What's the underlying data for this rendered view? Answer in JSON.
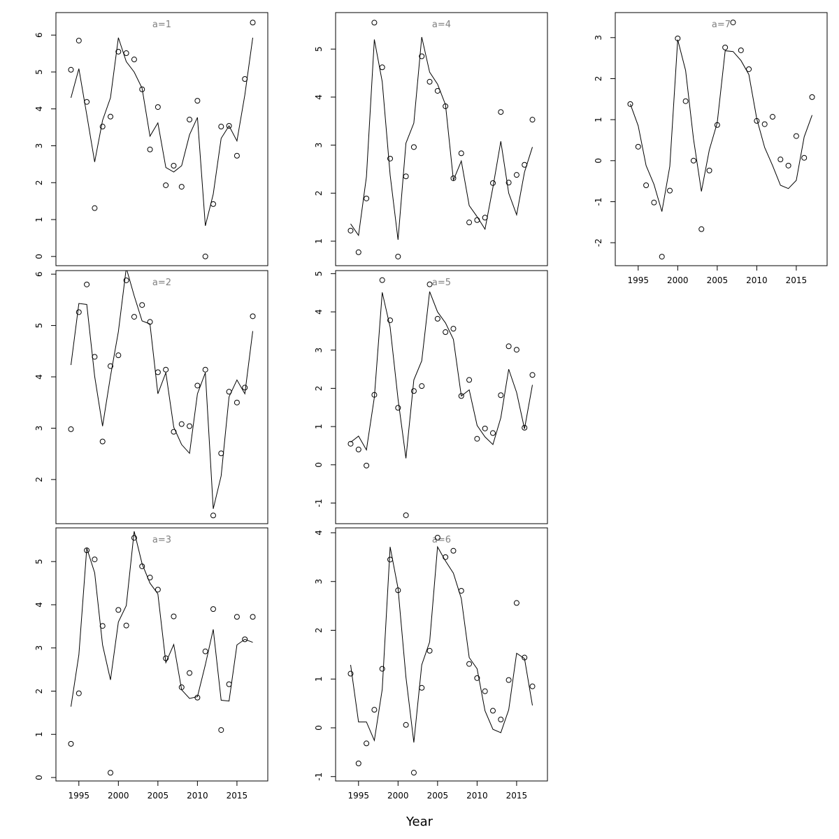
{
  "xlabel": "Year",
  "chart_data": [
    {
      "type": "scatter",
      "title": "a=1",
      "x": [
        1994,
        1995,
        1996,
        1997,
        1998,
        1999,
        2000,
        2001,
        2002,
        2003,
        2004,
        2005,
        2006,
        2007,
        2008,
        2009,
        2010,
        2011,
        2012,
        2013,
        2014,
        2015,
        2016,
        2017
      ],
      "xlim": [
        1992.1,
        2018.9
      ],
      "ylim": [
        -0.25,
        6.61
      ],
      "yticks": [
        0,
        1,
        2,
        3,
        4,
        5,
        6
      ],
      "series": [
        {
          "mark": "points",
          "color": "#000000",
          "values": [
            5.06,
            5.85,
            4.19,
            1.31,
            3.52,
            3.79,
            5.55,
            5.51,
            5.34,
            4.53,
            2.9,
            4.05,
            1.93,
            2.46,
            1.89,
            3.71,
            4.22,
            0.0,
            1.42,
            3.52,
            3.54,
            2.73,
            4.81,
            6.34
          ]
        },
        {
          "mark": "line",
          "color": "#000000",
          "values": [
            4.3,
            5.09,
            3.84,
            2.56,
            3.69,
            4.3,
            5.93,
            5.28,
            5.0,
            4.56,
            3.26,
            3.62,
            2.41,
            2.29,
            2.46,
            3.3,
            3.77,
            0.83,
            1.69,
            3.2,
            3.54,
            3.13,
            4.38,
            5.93
          ]
        }
      ]
    },
    {
      "type": "scatter",
      "title": "a=2",
      "x": [
        1994,
        1995,
        1996,
        1997,
        1998,
        1999,
        2000,
        2001,
        2002,
        2003,
        2004,
        2005,
        2006,
        2007,
        2008,
        2009,
        2010,
        2011,
        2012,
        2013,
        2014,
        2015,
        2016,
        2017
      ],
      "xlim": [
        1992.1,
        2018.9
      ],
      "ylim": [
        1.14,
        6.07
      ],
      "yticks": [
        2,
        3,
        4,
        5,
        6
      ],
      "series": [
        {
          "mark": "points",
          "color": "#000000",
          "values": [
            2.98,
            5.26,
            5.8,
            4.39,
            2.74,
            4.21,
            4.42,
            5.88,
            5.17,
            5.4,
            5.07,
            4.09,
            4.14,
            2.93,
            3.08,
            3.04,
            3.83,
            4.14,
            1.3,
            2.51,
            3.71,
            3.5,
            3.79,
            5.18
          ]
        },
        {
          "mark": "line",
          "color": "#000000",
          "values": [
            4.23,
            5.43,
            5.41,
            4.01,
            3.04,
            4.01,
            4.88,
            6.12,
            5.58,
            5.09,
            5.03,
            3.67,
            4.08,
            3.02,
            2.68,
            2.51,
            3.67,
            4.08,
            1.43,
            2.07,
            3.61,
            3.94,
            3.67,
            4.89
          ]
        }
      ]
    },
    {
      "type": "scatter",
      "title": "a=3",
      "x": [
        1994,
        1995,
        1996,
        1997,
        1998,
        1999,
        2000,
        2001,
        2002,
        2003,
        2004,
        2005,
        2006,
        2007,
        2008,
        2009,
        2010,
        2011,
        2012,
        2013,
        2014,
        2015,
        2016,
        2017
      ],
      "xlim": [
        1992.1,
        2018.9
      ],
      "xticks": [
        1995,
        2000,
        2005,
        2010,
        2015
      ],
      "ylim": [
        -0.08,
        5.78
      ],
      "yticks": [
        0,
        1,
        2,
        3,
        4,
        5
      ],
      "series": [
        {
          "mark": "points",
          "color": "#000000",
          "values": [
            0.78,
            1.95,
            5.26,
            5.05,
            3.51,
            0.11,
            3.88,
            3.52,
            5.55,
            4.89,
            4.63,
            4.35,
            2.76,
            3.73,
            2.09,
            2.42,
            1.85,
            2.92,
            3.9,
            1.1,
            2.16,
            3.72,
            3.2,
            3.72
          ]
        },
        {
          "mark": "line",
          "color": "#000000",
          "values": [
            1.64,
            2.84,
            5.31,
            4.74,
            3.07,
            2.26,
            3.6,
            3.98,
            5.7,
            4.95,
            4.5,
            4.25,
            2.66,
            3.08,
            2.03,
            1.83,
            1.87,
            2.61,
            3.43,
            1.79,
            1.77,
            3.07,
            3.2,
            3.13
          ]
        }
      ]
    },
    {
      "type": "scatter",
      "title": "a=4",
      "x": [
        1994,
        1995,
        1996,
        1997,
        1998,
        1999,
        2000,
        2001,
        2002,
        2003,
        2004,
        2005,
        2006,
        2007,
        2008,
        2009,
        2010,
        2011,
        2012,
        2013,
        2014,
        2015,
        2016,
        2017
      ],
      "xlim": [
        1992.1,
        2018.9
      ],
      "ylim": [
        0.49,
        5.76
      ],
      "yticks": [
        1,
        2,
        3,
        4,
        5
      ],
      "series": [
        {
          "mark": "points",
          "color": "#000000",
          "values": [
            1.22,
            0.77,
            1.89,
            5.55,
            4.62,
            2.72,
            0.68,
            2.35,
            2.96,
            4.85,
            4.32,
            4.13,
            3.81,
            2.31,
            2.83,
            1.39,
            1.44,
            1.49,
            2.21,
            3.69,
            2.22,
            2.38,
            2.59,
            3.53
          ]
        },
        {
          "mark": "line",
          "color": "#000000",
          "values": [
            1.36,
            1.12,
            2.34,
            5.2,
            4.32,
            2.38,
            1.03,
            3.04,
            3.46,
            5.25,
            4.52,
            4.27,
            3.84,
            2.27,
            2.67,
            1.74,
            1.51,
            1.25,
            2.12,
            3.08,
            2.0,
            1.55,
            2.44,
            2.96
          ]
        }
      ]
    },
    {
      "type": "scatter",
      "title": "a=5",
      "x": [
        1994,
        1995,
        1996,
        1997,
        1998,
        1999,
        2000,
        2001,
        2002,
        2003,
        2004,
        2005,
        2006,
        2007,
        2008,
        2009,
        2010,
        2011,
        2012,
        2013,
        2014,
        2015,
        2016,
        2017
      ],
      "xlim": [
        1992.1,
        2018.9
      ],
      "ylim": [
        -1.54,
        5.08
      ],
      "yticks": [
        -1,
        0,
        1,
        2,
        3,
        4,
        5
      ],
      "series": [
        {
          "mark": "points",
          "color": "#000000",
          "values": [
            0.55,
            0.4,
            -0.02,
            1.83,
            4.83,
            3.78,
            1.49,
            -1.32,
            1.93,
            2.06,
            4.72,
            3.82,
            3.47,
            3.56,
            1.8,
            2.22,
            0.68,
            0.95,
            0.83,
            1.82,
            3.1,
            3.01,
            0.97,
            2.35
          ]
        },
        {
          "mark": "line",
          "color": "#000000",
          "values": [
            0.59,
            0.75,
            0.39,
            1.76,
            4.51,
            3.6,
            1.72,
            0.17,
            2.22,
            2.72,
            4.53,
            4.0,
            3.71,
            3.28,
            1.8,
            1.96,
            1.03,
            0.73,
            0.53,
            1.23,
            2.5,
            1.89,
            0.94,
            2.09
          ]
        }
      ]
    },
    {
      "type": "scatter",
      "title": "a=6",
      "x": [
        1994,
        1995,
        1996,
        1997,
        1998,
        1999,
        2000,
        2001,
        2002,
        2003,
        2004,
        2005,
        2006,
        2007,
        2008,
        2009,
        2010,
        2011,
        2012,
        2013,
        2014,
        2015,
        2016,
        2017
      ],
      "xlim": [
        1992.1,
        2018.9
      ],
      "xticks": [
        1995,
        2000,
        2005,
        2010,
        2015
      ],
      "ylim": [
        -1.09,
        4.1
      ],
      "yticks": [
        -1,
        0,
        1,
        2,
        3,
        4
      ],
      "series": [
        {
          "mark": "points",
          "color": "#000000",
          "values": [
            1.11,
            -0.73,
            -0.32,
            0.37,
            1.21,
            3.45,
            2.82,
            0.06,
            -0.92,
            0.82,
            1.58,
            3.9,
            3.5,
            3.63,
            2.81,
            1.31,
            1.02,
            0.75,
            0.35,
            0.17,
            0.98,
            2.56,
            1.44,
            0.85
          ]
        },
        {
          "mark": "line",
          "color": "#000000",
          "values": [
            1.29,
            0.12,
            0.12,
            -0.26,
            0.79,
            3.71,
            2.86,
            1.04,
            -0.3,
            1.29,
            1.76,
            3.71,
            3.42,
            3.17,
            2.65,
            1.44,
            1.21,
            0.35,
            -0.03,
            -0.1,
            0.37,
            1.53,
            1.42,
            0.46
          ]
        }
      ]
    },
    {
      "type": "scatter",
      "title": "a=7",
      "x": [
        1994,
        1995,
        1996,
        1997,
        1998,
        1999,
        2000,
        2001,
        2002,
        2003,
        2004,
        2005,
        2006,
        2007,
        2008,
        2009,
        2010,
        2011,
        2012,
        2013,
        2014,
        2015,
        2016,
        2017
      ],
      "xlim": [
        1992.1,
        2018.9
      ],
      "xticks": [
        1995,
        2000,
        2005,
        2010,
        2015
      ],
      "ylim": [
        -2.56,
        3.61
      ],
      "yticks": [
        -2,
        -1,
        0,
        1,
        2,
        3
      ],
      "series": [
        {
          "mark": "points",
          "color": "#000000",
          "values": [
            1.38,
            0.34,
            -0.6,
            -1.02,
            -2.34,
            -0.73,
            2.98,
            1.45,
            0.0,
            -1.67,
            -0.24,
            0.87,
            2.76,
            3.37,
            2.69,
            2.23,
            0.97,
            0.89,
            1.07,
            0.03,
            -0.12,
            0.6,
            0.07,
            1.55
          ]
        },
        {
          "mark": "line",
          "color": "#000000",
          "values": [
            1.38,
            0.85,
            -0.12,
            -0.58,
            -1.24,
            -0.14,
            2.95,
            2.2,
            0.53,
            -0.75,
            0.26,
            0.92,
            2.68,
            2.66,
            2.44,
            2.1,
            1.02,
            0.32,
            -0.12,
            -0.6,
            -0.68,
            -0.48,
            0.58,
            1.11
          ]
        }
      ]
    }
  ]
}
